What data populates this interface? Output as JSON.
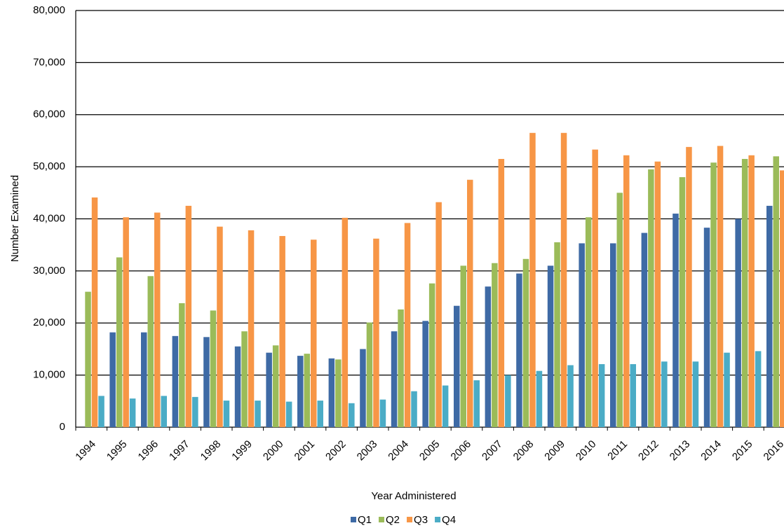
{
  "chart_data": {
    "type": "bar",
    "x_label": "Year Administered",
    "y_label": "Number Examined",
    "categories": [
      "1994",
      "1995",
      "1996",
      "1997",
      "1998",
      "1999",
      "2000",
      "2001",
      "2002",
      "2003",
      "2004",
      "2005",
      "2006",
      "2007",
      "2008",
      "2009",
      "2010",
      "2011",
      "2012",
      "2013",
      "2014",
      "2015",
      "2016"
    ],
    "series": [
      {
        "name": "Q1",
        "color": "#3e6aa5",
        "values": [
          null,
          18200,
          18200,
          17500,
          17300,
          15500,
          14300,
          13700,
          13200,
          15000,
          18400,
          20400,
          23300,
          27000,
          29500,
          31000,
          35300,
          35300,
          37300,
          41000,
          38300,
          40000,
          42500
        ]
      },
      {
        "name": "Q2",
        "color": "#9bbb59",
        "values": [
          26000,
          32600,
          29000,
          23800,
          22400,
          18400,
          15700,
          14100,
          13000,
          20100,
          22600,
          27600,
          31000,
          31500,
          32300,
          35500,
          40300,
          45000,
          49500,
          48000,
          50800,
          51500,
          52000
        ]
      },
      {
        "name": "Q3",
        "color": "#f79646",
        "values": [
          44100,
          40300,
          41200,
          42500,
          38500,
          37800,
          36700,
          36000,
          40200,
          36200,
          39200,
          43200,
          47500,
          51500,
          56500,
          56500,
          53300,
          52200,
          51000,
          53800,
          54000,
          52200,
          49300
        ]
      },
      {
        "name": "Q4",
        "color": "#4bacc6",
        "values": [
          6000,
          5500,
          6000,
          5800,
          5100,
          5100,
          4900,
          5100,
          4600,
          5300,
          6900,
          8000,
          9000,
          10000,
          10800,
          11900,
          12100,
          12100,
          12600,
          12600,
          14300,
          14600,
          null
        ]
      }
    ],
    "ylim": [
      0,
      80000
    ],
    "yticks": [
      0,
      {
        "value": 10000,
        "label": "10,000"
      },
      {
        "value": 20000,
        "label": "20,000"
      },
      {
        "value": 30000,
        "label": "30,000"
      },
      {
        "value": 40000,
        "label": "40,000"
      },
      {
        "value": 50000,
        "label": "50,000"
      },
      {
        "value": 60000,
        "label": "60,000"
      },
      {
        "value": 70000,
        "label": "70,000"
      },
      {
        "value": 80000,
        "label": "80,000"
      }
    ],
    "grid": true
  }
}
